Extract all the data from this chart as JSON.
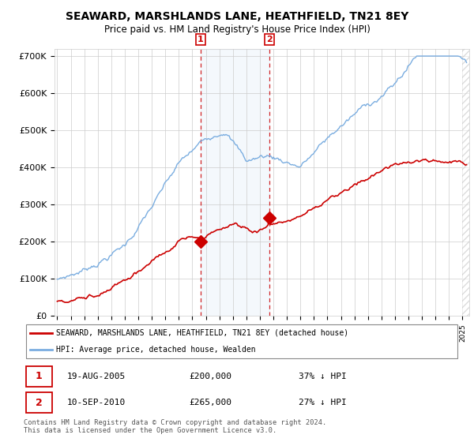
{
  "title": "SEAWARD, MARSHLANDS LANE, HEATHFIELD, TN21 8EY",
  "subtitle": "Price paid vs. HM Land Registry's House Price Index (HPI)",
  "ylabel_ticks": [
    "£0",
    "£100K",
    "£200K",
    "£300K",
    "£400K",
    "£500K",
    "£600K",
    "£700K"
  ],
  "ytick_values": [
    0,
    100000,
    200000,
    300000,
    400000,
    500000,
    600000,
    700000
  ],
  "ylim": [
    0,
    720000
  ],
  "xlim_start": 1994.8,
  "xlim_end": 2025.5,
  "legend_line1": "SEAWARD, MARSHLANDS LANE, HEATHFIELD, TN21 8EY (detached house)",
  "legend_line2": "HPI: Average price, detached house, Wealden",
  "sale1_label": "1",
  "sale1_date": "19-AUG-2005",
  "sale1_price": "£200,000",
  "sale1_hpi": "37% ↓ HPI",
  "sale1_year": 2005.62,
  "sale1_value": 200000,
  "sale2_label": "2",
  "sale2_date": "10-SEP-2010",
  "sale2_price": "£265,000",
  "sale2_hpi": "27% ↓ HPI",
  "sale2_year": 2010.7,
  "sale2_value": 265000,
  "red_color": "#cc0000",
  "blue_color": "#7aade0",
  "footnote": "Contains HM Land Registry data © Crown copyright and database right 2024.\nThis data is licensed under the Open Government Licence v3.0."
}
